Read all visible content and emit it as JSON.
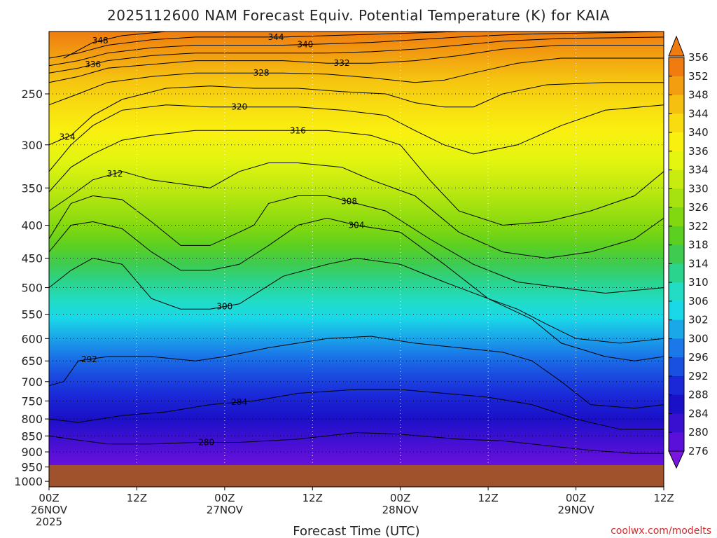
{
  "colors": {
    "ground": "#a0522d",
    "credit": "#d42a2a"
  },
  "chart_data": {
    "type": "heatmap",
    "title": "2025112600 NAM Forecast Equiv. Potential Temperature (K) for KAIA",
    "xlabel": "Forecast Time (UTC)",
    "ylabel": "",
    "credit": "coolwx.com/modelts",
    "y_scale": "log",
    "y_reversed": true,
    "ylim": [
      1020,
      200
    ],
    "y_ticks": [
      250,
      300,
      350,
      400,
      450,
      500,
      550,
      600,
      650,
      700,
      750,
      800,
      850,
      900,
      950,
      1000
    ],
    "xlim": [
      0,
      84
    ],
    "x_ticks": [
      {
        "hour": 0,
        "line1": "00Z",
        "line2": "26NOV",
        "line3": "2025"
      },
      {
        "hour": 12,
        "line1": "12Z",
        "line2": "",
        "line3": ""
      },
      {
        "hour": 24,
        "line1": "00Z",
        "line2": "27NOV",
        "line3": ""
      },
      {
        "hour": 36,
        "line1": "12Z",
        "line2": "",
        "line3": ""
      },
      {
        "hour": 48,
        "line1": "00Z",
        "line2": "28NOV",
        "line3": ""
      },
      {
        "hour": 60,
        "line1": "12Z",
        "line2": "",
        "line3": ""
      },
      {
        "hour": 72,
        "line1": "00Z",
        "line2": "29NOV",
        "line3": ""
      },
      {
        "hour": 84,
        "line1": "12Z",
        "line2": "",
        "line3": ""
      }
    ],
    "colorbar": {
      "labels": [
        "356",
        "352",
        "348",
        "344",
        "340",
        "336",
        "334",
        "330",
        "326",
        "322",
        "318",
        "314",
        "310",
        "306",
        "302",
        "300",
        "296",
        "292",
        "288",
        "284",
        "280",
        "276"
      ],
      "colors": [
        "#f07c10",
        "#f29e10",
        "#f5c010",
        "#f8dc10",
        "#f9f010",
        "#e4f510",
        "#c8ec10",
        "#a6e210",
        "#82d810",
        "#5cd020",
        "#3ecb50",
        "#2ad48c",
        "#22dcc4",
        "#1ad8e8",
        "#1aa8e8",
        "#1a78e8",
        "#1a50e0",
        "#1a28d8",
        "#1a10c8",
        "#3a10d0",
        "#5a10d8",
        "#7a14e0"
      ]
    },
    "isotherms": [
      {
        "value": 280,
        "label": "280",
        "label_x": 21.5,
        "points": [
          [
            0,
            850
          ],
          [
            3,
            860
          ],
          [
            8,
            875
          ],
          [
            14,
            875
          ],
          [
            20,
            870
          ],
          [
            26,
            870
          ],
          [
            34,
            860
          ],
          [
            42,
            840
          ],
          [
            48,
            845
          ],
          [
            56,
            860
          ],
          [
            62,
            865
          ],
          [
            68,
            880
          ],
          [
            74,
            895
          ],
          [
            80,
            905
          ],
          [
            84,
            905
          ]
        ]
      },
      {
        "value": 284,
        "label": "284",
        "label_x": 26,
        "points": [
          [
            0,
            800
          ],
          [
            4,
            810
          ],
          [
            10,
            790
          ],
          [
            16,
            780
          ],
          [
            22,
            760
          ],
          [
            28,
            750
          ],
          [
            34,
            730
          ],
          [
            42,
            720
          ],
          [
            48,
            720
          ],
          [
            54,
            730
          ],
          [
            60,
            740
          ],
          [
            66,
            760
          ],
          [
            72,
            800
          ],
          [
            78,
            830
          ],
          [
            84,
            830
          ]
        ]
      },
      {
        "value": 292,
        "label": "292",
        "label_x": 5.5,
        "points": [
          [
            0,
            710
          ],
          [
            2,
            700
          ],
          [
            4,
            650
          ],
          [
            8,
            640
          ],
          [
            14,
            640
          ],
          [
            20,
            650
          ],
          [
            24,
            640
          ],
          [
            30,
            620
          ],
          [
            38,
            600
          ],
          [
            44,
            595
          ],
          [
            50,
            610
          ],
          [
            56,
            620
          ],
          [
            62,
            630
          ],
          [
            66,
            650
          ],
          [
            70,
            700
          ],
          [
            74,
            760
          ],
          [
            80,
            770
          ],
          [
            84,
            760
          ]
        ]
      },
      {
        "value": 300,
        "label": "300",
        "label_x": 24,
        "points": [
          [
            0,
            500
          ],
          [
            3,
            470
          ],
          [
            6,
            450
          ],
          [
            10,
            460
          ],
          [
            14,
            520
          ],
          [
            18,
            540
          ],
          [
            22,
            540
          ],
          [
            26,
            530
          ],
          [
            32,
            480
          ],
          [
            38,
            460
          ],
          [
            42,
            450
          ],
          [
            48,
            460
          ],
          [
            54,
            490
          ],
          [
            60,
            520
          ],
          [
            66,
            560
          ],
          [
            70,
            610
          ],
          [
            76,
            640
          ],
          [
            80,
            650
          ],
          [
            84,
            640
          ]
        ]
      },
      {
        "value": 304,
        "label": "304",
        "label_x": 42,
        "points": [
          [
            0,
            440
          ],
          [
            3,
            400
          ],
          [
            6,
            395
          ],
          [
            10,
            405
          ],
          [
            14,
            440
          ],
          [
            18,
            470
          ],
          [
            22,
            470
          ],
          [
            26,
            460
          ],
          [
            30,
            430
          ],
          [
            34,
            400
          ],
          [
            38,
            390
          ],
          [
            42,
            400
          ],
          [
            48,
            410
          ],
          [
            54,
            460
          ],
          [
            60,
            520
          ],
          [
            64,
            540
          ],
          [
            68,
            570
          ],
          [
            72,
            600
          ],
          [
            78,
            610
          ],
          [
            84,
            600
          ]
        ]
      },
      {
        "value": 308,
        "label": "308",
        "label_x": 41,
        "points": [
          [
            0,
            420
          ],
          [
            3,
            370
          ],
          [
            6,
            360
          ],
          [
            10,
            365
          ],
          [
            14,
            395
          ],
          [
            18,
            430
          ],
          [
            22,
            430
          ],
          [
            26,
            410
          ],
          [
            28,
            400
          ],
          [
            30,
            370
          ],
          [
            34,
            360
          ],
          [
            38,
            360
          ],
          [
            42,
            370
          ],
          [
            46,
            380
          ],
          [
            52,
            420
          ],
          [
            58,
            460
          ],
          [
            64,
            490
          ],
          [
            70,
            500
          ],
          [
            76,
            510
          ],
          [
            84,
            500
          ]
        ]
      },
      {
        "value": 312,
        "label": "312",
        "label_x": 9,
        "points": [
          [
            0,
            380
          ],
          [
            3,
            360
          ],
          [
            6,
            340
          ],
          [
            10,
            330
          ],
          [
            14,
            340
          ],
          [
            18,
            345
          ],
          [
            22,
            350
          ],
          [
            26,
            330
          ],
          [
            30,
            320
          ],
          [
            34,
            320
          ],
          [
            40,
            325
          ],
          [
            44,
            340
          ],
          [
            50,
            360
          ],
          [
            56,
            410
          ],
          [
            62,
            440
          ],
          [
            68,
            450
          ],
          [
            74,
            440
          ],
          [
            80,
            420
          ],
          [
            84,
            390
          ]
        ]
      },
      {
        "value": 316,
        "label": "316",
        "label_x": 34,
        "points": [
          [
            0,
            355
          ],
          [
            3,
            325
          ],
          [
            6,
            310
          ],
          [
            10,
            295
          ],
          [
            14,
            290
          ],
          [
            20,
            285
          ],
          [
            26,
            285
          ],
          [
            32,
            285
          ],
          [
            38,
            285
          ],
          [
            44,
            290
          ],
          [
            48,
            300
          ],
          [
            52,
            340
          ],
          [
            56,
            380
          ],
          [
            62,
            400
          ],
          [
            68,
            395
          ],
          [
            74,
            380
          ],
          [
            80,
            360
          ],
          [
            84,
            330
          ]
        ]
      },
      {
        "value": 320,
        "label": "320",
        "label_x": 26,
        "points": [
          [
            0,
            330
          ],
          [
            3,
            300
          ],
          [
            6,
            280
          ],
          [
            10,
            265
          ],
          [
            16,
            260
          ],
          [
            22,
            262
          ],
          [
            28,
            262
          ],
          [
            34,
            262
          ],
          [
            40,
            265
          ],
          [
            46,
            270
          ],
          [
            50,
            285
          ],
          [
            54,
            300
          ],
          [
            58,
            310
          ],
          [
            64,
            300
          ],
          [
            70,
            280
          ],
          [
            76,
            265
          ],
          [
            84,
            260
          ]
        ]
      },
      {
        "value": 324,
        "label": "324",
        "label_x": 2.5,
        "points": [
          [
            0,
            300
          ],
          [
            3,
            290
          ],
          [
            6,
            270
          ],
          [
            10,
            255
          ],
          [
            16,
            245
          ],
          [
            22,
            243
          ],
          [
            28,
            245
          ],
          [
            34,
            245
          ],
          [
            40,
            248
          ],
          [
            46,
            250
          ],
          [
            50,
            258
          ],
          [
            54,
            262
          ],
          [
            58,
            262
          ],
          [
            62,
            250
          ],
          [
            68,
            242
          ],
          [
            76,
            240
          ],
          [
            84,
            240
          ]
        ]
      },
      {
        "value": 328,
        "label": "328",
        "label_x": 29,
        "points": [
          [
            0,
            260
          ],
          [
            4,
            250
          ],
          [
            8,
            240
          ],
          [
            14,
            235
          ],
          [
            20,
            232
          ],
          [
            26,
            232
          ],
          [
            32,
            232
          ],
          [
            38,
            233
          ],
          [
            44,
            236
          ],
          [
            50,
            240
          ],
          [
            54,
            238
          ],
          [
            58,
            232
          ],
          [
            64,
            224
          ],
          [
            70,
            220
          ],
          [
            76,
            220
          ],
          [
            84,
            220
          ]
        ]
      },
      {
        "value": 332,
        "label": "332",
        "label_x": 40,
        "points": [
          [
            0,
            240
          ],
          [
            4,
            235
          ],
          [
            8,
            228
          ],
          [
            14,
            225
          ],
          [
            20,
            222
          ],
          [
            26,
            222
          ],
          [
            32,
            222
          ],
          [
            38,
            224
          ],
          [
            44,
            224
          ],
          [
            50,
            222
          ],
          [
            56,
            218
          ],
          [
            62,
            213
          ],
          [
            70,
            210
          ],
          [
            84,
            210
          ]
        ]
      },
      {
        "value": 336,
        "label": "336",
        "label_x": 6,
        "points": [
          [
            0,
            232
          ],
          [
            4,
            228
          ],
          [
            8,
            222
          ],
          [
            14,
            218
          ],
          [
            20,
            216
          ],
          [
            26,
            216
          ],
          [
            32,
            216
          ],
          [
            38,
            216
          ],
          [
            44,
            215
          ],
          [
            50,
            213
          ],
          [
            56,
            210
          ],
          [
            62,
            207
          ],
          [
            70,
            205
          ],
          [
            84,
            204
          ]
        ]
      },
      {
        "value": 340,
        "label": "340",
        "label_x": 35,
        "points": [
          [
            0,
            226
          ],
          [
            4,
            222
          ],
          [
            8,
            216
          ],
          [
            14,
            212
          ],
          [
            20,
            210
          ],
          [
            26,
            210
          ],
          [
            32,
            210
          ],
          [
            38,
            209
          ],
          [
            44,
            208
          ],
          [
            50,
            206
          ],
          [
            56,
            204
          ],
          [
            64,
            202
          ],
          [
            74,
            201
          ],
          [
            84,
            200
          ]
        ]
      },
      {
        "value": 344,
        "label": "344",
        "label_x": 31,
        "points": [
          [
            0,
            220
          ],
          [
            4,
            216
          ],
          [
            8,
            210
          ],
          [
            14,
            206
          ],
          [
            20,
            204
          ],
          [
            26,
            204
          ],
          [
            32,
            204
          ],
          [
            38,
            203
          ],
          [
            44,
            202
          ],
          [
            50,
            201
          ],
          [
            56,
            200
          ]
        ]
      },
      {
        "value": 348,
        "label": "348",
        "label_x": 7,
        "points": [
          [
            2,
            220
          ],
          [
            6,
            208
          ],
          [
            10,
            203
          ],
          [
            16,
            200
          ]
        ]
      }
    ]
  }
}
